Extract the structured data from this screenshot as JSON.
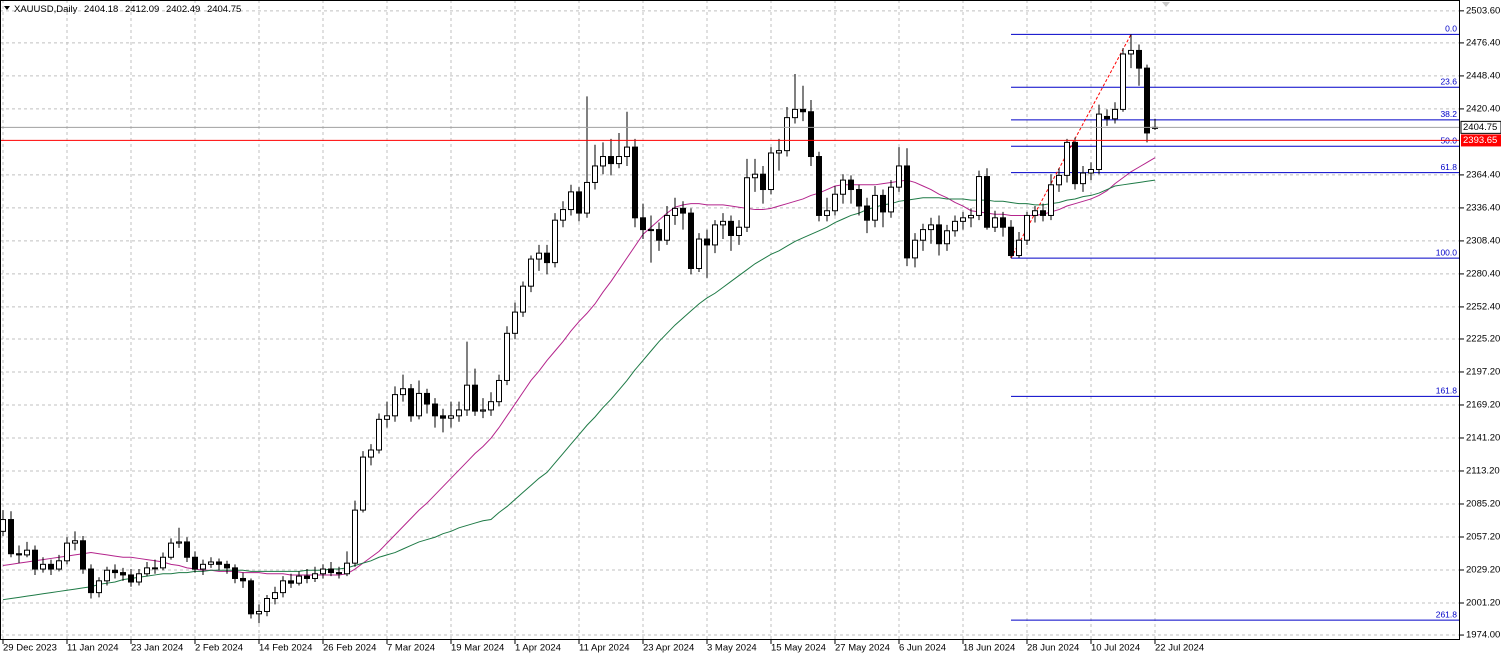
{
  "chart_data": {
    "type": "candlestick",
    "symbol": "XAUUSD,Daily",
    "categories": [
      "29 Dec 2023",
      null,
      null,
      null,
      null,
      null,
      null,
      null,
      "11 Jan 2024",
      null,
      null,
      null,
      null,
      null,
      null,
      null,
      "23 Jan 2024",
      null,
      null,
      null,
      null,
      null,
      null,
      null,
      "2 Feb 2024",
      null,
      null,
      null,
      null,
      null,
      null,
      null,
      "14 Feb 2024",
      null,
      null,
      null,
      null,
      null,
      null,
      null,
      "26 Feb 2024",
      null,
      null,
      null,
      null,
      null,
      null,
      null,
      "7 Mar 2024",
      null,
      null,
      null,
      null,
      null,
      null,
      null,
      "19 Mar 2024",
      null,
      null,
      null,
      null,
      null,
      null,
      null,
      "1 Apr 2024",
      null,
      null,
      null,
      null,
      null,
      null,
      null,
      "11 Apr 2024",
      null,
      null,
      null,
      null,
      null,
      null,
      null,
      "23 Apr 2024",
      null,
      null,
      null,
      null,
      null,
      null,
      null,
      "3 May 2024",
      null,
      null,
      null,
      null,
      null,
      null,
      null,
      "15 May 2024",
      null,
      null,
      null,
      null,
      null,
      null,
      null,
      "27 May 2024",
      null,
      null,
      null,
      null,
      null,
      null,
      null,
      "6 Jun 2024",
      null,
      null,
      null,
      null,
      null,
      null,
      null,
      "18 Jun 2024",
      null,
      null,
      null,
      null,
      null,
      null,
      null,
      "28 Jun 2024",
      null,
      null,
      null,
      null,
      null,
      null,
      null,
      "10 Jul 2024",
      null,
      null,
      null,
      null,
      null,
      null,
      null,
      "22 Jul 2024"
    ],
    "candles": [
      [
        2062,
        2080,
        2058,
        2072
      ],
      [
        2072,
        2079,
        2040,
        2043
      ],
      [
        2043,
        2050,
        2035,
        2042
      ],
      [
        2042,
        2053,
        2040,
        2046
      ],
      [
        2046,
        2050,
        2025,
        2030
      ],
      [
        2030,
        2040,
        2027,
        2034
      ],
      [
        2034,
        2038,
        2025,
        2030
      ],
      [
        2030,
        2042,
        2028,
        2037
      ],
      [
        2037,
        2057,
        2034,
        2052
      ],
      [
        2052,
        2062,
        2046,
        2054
      ],
      [
        2054,
        2058,
        2026,
        2030
      ],
      [
        2030,
        2034,
        2005,
        2010
      ],
      [
        2010,
        2023,
        2006,
        2020
      ],
      [
        2020,
        2032,
        2016,
        2029
      ],
      [
        2029,
        2034,
        2022,
        2027
      ],
      [
        2027,
        2031,
        2020,
        2025
      ],
      [
        2025,
        2030,
        2015,
        2019
      ],
      [
        2019,
        2030,
        2016,
        2026
      ],
      [
        2026,
        2036,
        2024,
        2031
      ],
      [
        2031,
        2038,
        2026,
        2031
      ],
      [
        2031,
        2044,
        2029,
        2040
      ],
      [
        2040,
        2056,
        2038,
        2052
      ],
      [
        2052,
        2065,
        2048,
        2053
      ],
      [
        2053,
        2057,
        2036,
        2040
      ],
      [
        2040,
        2045,
        2027,
        2030
      ],
      [
        2030,
        2038,
        2025,
        2034
      ],
      [
        2034,
        2040,
        2031,
        2036
      ],
      [
        2036,
        2039,
        2029,
        2034
      ],
      [
        2034,
        2037,
        2026,
        2031
      ],
      [
        2031,
        2034,
        2018,
        2022
      ],
      [
        2022,
        2027,
        2014,
        2020
      ],
      [
        2020,
        2022,
        1988,
        1992
      ],
      [
        1992,
        2000,
        1984,
        1994
      ],
      [
        1994,
        2008,
        1990,
        2005
      ],
      [
        2005,
        2015,
        2000,
        2010
      ],
      [
        2010,
        2024,
        2006,
        2020
      ],
      [
        2020,
        2026,
        2014,
        2018
      ],
      [
        2018,
        2028,
        2016,
        2024
      ],
      [
        2024,
        2030,
        2018,
        2022
      ],
      [
        2022,
        2032,
        2019,
        2026
      ],
      [
        2026,
        2034,
        2022,
        2030
      ],
      [
        2030,
        2036,
        2024,
        2027
      ],
      [
        2027,
        2032,
        2022,
        2026
      ],
      [
        2026,
        2045,
        2024,
        2035
      ],
      [
        2035,
        2088,
        2032,
        2080
      ],
      [
        2080,
        2130,
        2078,
        2125
      ],
      [
        2125,
        2136,
        2118,
        2131
      ],
      [
        2131,
        2162,
        2128,
        2157
      ],
      [
        2157,
        2172,
        2150,
        2160
      ],
      [
        2160,
        2185,
        2155,
        2178
      ],
      [
        2178,
        2195,
        2172,
        2183
      ],
      [
        2183,
        2187,
        2155,
        2160
      ],
      [
        2160,
        2190,
        2157,
        2179
      ],
      [
        2179,
        2183,
        2162,
        2170
      ],
      [
        2170,
        2175,
        2150,
        2160
      ],
      [
        2160,
        2166,
        2146,
        2158
      ],
      [
        2158,
        2172,
        2150,
        2160
      ],
      [
        2160,
        2172,
        2155,
        2165
      ],
      [
        2165,
        2223,
        2160,
        2186
      ],
      [
        2186,
        2200,
        2160,
        2164
      ],
      [
        2164,
        2175,
        2158,
        2165
      ],
      [
        2165,
        2180,
        2160,
        2172
      ],
      [
        2172,
        2195,
        2168,
        2190
      ],
      [
        2190,
        2236,
        2186,
        2230
      ],
      [
        2230,
        2256,
        2225,
        2248
      ],
      [
        2248,
        2274,
        2244,
        2270
      ],
      [
        2270,
        2296,
        2265,
        2293
      ],
      [
        2293,
        2305,
        2283,
        2298
      ],
      [
        2298,
        2305,
        2280,
        2290
      ],
      [
        2290,
        2332,
        2286,
        2326
      ],
      [
        2326,
        2342,
        2320,
        2335
      ],
      [
        2335,
        2356,
        2330,
        2350
      ],
      [
        2350,
        2354,
        2325,
        2332
      ],
      [
        2332,
        2431,
        2328,
        2358
      ],
      [
        2358,
        2390,
        2352,
        2372
      ],
      [
        2372,
        2392,
        2365,
        2380
      ],
      [
        2380,
        2395,
        2364,
        2374
      ],
      [
        2374,
        2400,
        2370,
        2380
      ],
      [
        2380,
        2418,
        2372,
        2388
      ],
      [
        2388,
        2395,
        2320,
        2328
      ],
      [
        2328,
        2340,
        2310,
        2318
      ],
      [
        2318,
        2330,
        2290,
        2318
      ],
      [
        2318,
        2324,
        2300,
        2309
      ],
      [
        2309,
        2338,
        2305,
        2330
      ],
      [
        2330,
        2345,
        2322,
        2336
      ],
      [
        2336,
        2342,
        2318,
        2332
      ],
      [
        2332,
        2336,
        2280,
        2285
      ],
      [
        2285,
        2315,
        2282,
        2310
      ],
      [
        2310,
        2318,
        2277,
        2305
      ],
      [
        2305,
        2326,
        2298,
        2322
      ],
      [
        2322,
        2332,
        2310,
        2325
      ],
      [
        2325,
        2330,
        2300,
        2313
      ],
      [
        2313,
        2326,
        2305,
        2320
      ],
      [
        2320,
        2378,
        2316,
        2362
      ],
      [
        2362,
        2378,
        2350,
        2365
      ],
      [
        2365,
        2372,
        2340,
        2352
      ],
      [
        2352,
        2388,
        2348,
        2383
      ],
      [
        2383,
        2395,
        2368,
        2385
      ],
      [
        2385,
        2422,
        2380,
        2413
      ],
      [
        2413,
        2450,
        2408,
        2420
      ],
      [
        2420,
        2440,
        2410,
        2418
      ],
      [
        2418,
        2428,
        2372,
        2380
      ],
      [
        2380,
        2384,
        2325,
        2330
      ],
      [
        2330,
        2345,
        2325,
        2334
      ],
      [
        2334,
        2355,
        2330,
        2348
      ],
      [
        2348,
        2365,
        2340,
        2360
      ],
      [
        2360,
        2364,
        2340,
        2352
      ],
      [
        2352,
        2356,
        2330,
        2338
      ],
      [
        2338,
        2345,
        2315,
        2326
      ],
      [
        2326,
        2355,
        2320,
        2347
      ],
      [
        2347,
        2352,
        2320,
        2333
      ],
      [
        2333,
        2360,
        2328,
        2354
      ],
      [
        2354,
        2388,
        2350,
        2372
      ],
      [
        2372,
        2387,
        2287,
        2294
      ],
      [
        2294,
        2315,
        2286,
        2309
      ],
      [
        2309,
        2323,
        2300,
        2318
      ],
      [
        2318,
        2328,
        2306,
        2322
      ],
      [
        2322,
        2330,
        2296,
        2306
      ],
      [
        2306,
        2322,
        2300,
        2317
      ],
      [
        2317,
        2330,
        2312,
        2325
      ],
      [
        2325,
        2333,
        2318,
        2328
      ],
      [
        2328,
        2336,
        2320,
        2330
      ],
      [
        2330,
        2368,
        2326,
        2363
      ],
      [
        2363,
        2370,
        2318,
        2320
      ],
      [
        2320,
        2334,
        2316,
        2328
      ],
      [
        2328,
        2333,
        2312,
        2320
      ],
      [
        2320,
        2326,
        2293.8,
        2296
      ],
      [
        2296,
        2316,
        2294,
        2309
      ],
      [
        2309,
        2333,
        2305,
        2330
      ],
      [
        2330,
        2338,
        2324,
        2334
      ],
      [
        2334,
        2340,
        2325,
        2330
      ],
      [
        2330,
        2365,
        2326,
        2356
      ],
      [
        2356,
        2370,
        2350,
        2364
      ],
      [
        2364,
        2395,
        2358,
        2392
      ],
      [
        2392,
        2396,
        2352,
        2357
      ],
      [
        2357,
        2372,
        2350,
        2366
      ],
      [
        2366,
        2375,
        2360,
        2369
      ],
      [
        2369,
        2424,
        2365,
        2416
      ],
      [
        2414,
        2420,
        2406,
        2412
      ],
      [
        2412,
        2426,
        2408,
        2420
      ],
      [
        2420,
        2472,
        2418,
        2467
      ],
      [
        2467,
        2483.6,
        2455,
        2470
      ],
      [
        2470,
        2475,
        2440,
        2455
      ],
      [
        2455,
        2458,
        2392,
        2400
      ],
      [
        2404.18,
        2412.09,
        2402.49,
        2404.75
      ]
    ],
    "up_color": "#ffffff",
    "down_color": "#000000",
    "moving_averages": [
      {
        "color": "#b4248c",
        "values": [
          2033,
          2034,
          2035,
          2036,
          2037,
          2038,
          2039,
          2040,
          2041,
          2042,
          2043,
          2044,
          2043,
          2042,
          2041,
          2040,
          2040,
          2039,
          2038,
          2037,
          2036,
          2034,
          2033,
          2031,
          2030,
          2029,
          2029,
          2028,
          2028,
          2028,
          2027,
          2027,
          2027,
          2026,
          2026,
          2026,
          2025,
          2025,
          2025,
          2025,
          2025,
          2025,
          2025,
          2026,
          2030,
          2035,
          2040,
          2045,
          2052,
          2059,
          2066,
          2073,
          2080,
          2086,
          2093,
          2100,
          2107,
          2114,
          2121,
          2128,
          2134,
          2141,
          2150,
          2160,
          2170,
          2180,
          2190,
          2198,
          2207,
          2215,
          2223,
          2232,
          2240,
          2247,
          2255,
          2265,
          2274,
          2284,
          2294,
          2304,
          2314,
          2320,
          2326,
          2332,
          2337,
          2339,
          2340,
          2340,
          2339,
          2339,
          2339,
          2338,
          2337,
          2336,
          2335,
          2335,
          2336,
          2338,
          2340,
          2342,
          2344,
          2347,
          2349,
          2352,
          2355,
          2356,
          2356,
          2356,
          2356,
          2356,
          2357,
          2358,
          2359,
          2360,
          2358,
          2355,
          2352,
          2348,
          2345,
          2341,
          2338,
          2334,
          2333,
          2332,
          2331,
          2331,
          2330,
          2330,
          2330,
          2330,
          2331,
          2333,
          2335,
          2338,
          2340,
          2342,
          2344,
          2347,
          2351,
          2357,
          2362,
          2367,
          2371,
          2375,
          2379
        ]
      },
      {
        "color": "#1e7a46",
        "values": [
          2004,
          2005,
          2006,
          2007,
          2008,
          2009,
          2010,
          2011,
          2012,
          2013,
          2014,
          2015,
          2017,
          2018,
          2019,
          2021,
          2022,
          2023,
          2024,
          2025,
          2026,
          2026,
          2027,
          2027,
          2028,
          2028,
          2029,
          2029,
          2029,
          2029,
          2029,
          2028,
          2028,
          2028,
          2028,
          2028,
          2028,
          2028,
          2029,
          2029,
          2029,
          2030,
          2030,
          2031,
          2033,
          2035,
          2037,
          2040,
          2042,
          2044,
          2047,
          2050,
          2053,
          2055,
          2057,
          2060,
          2062,
          2065,
          2067,
          2069,
          2071,
          2072,
          2078,
          2083,
          2089,
          2095,
          2101,
          2107,
          2112,
          2120,
          2128,
          2136,
          2144,
          2152,
          2159,
          2167,
          2174,
          2182,
          2190,
          2199,
          2207,
          2215,
          2223,
          2230,
          2237,
          2243,
          2249,
          2255,
          2260,
          2264,
          2269,
          2274,
          2279,
          2284,
          2289,
          2293,
          2297,
          2300,
          2304,
          2308,
          2311,
          2314,
          2317,
          2320,
          2324,
          2327,
          2330,
          2332,
          2335,
          2337,
          2339,
          2340,
          2342,
          2343,
          2344,
          2345,
          2345,
          2345,
          2344,
          2344,
          2344,
          2343,
          2343,
          2343,
          2342,
          2342,
          2341,
          2340,
          2340,
          2339,
          2339,
          2340,
          2341,
          2343,
          2344,
          2346,
          2347,
          2349,
          2352,
          2355,
          2356,
          2357,
          2358,
          2359,
          2360
        ]
      }
    ],
    "fibonacci": {
      "color": "#0000c8",
      "line_color": "#ff0000",
      "levels": [
        {
          "label": "0.0",
          "price": 2483.6
        },
        {
          "label": "23.6",
          "price": 2438.8
        },
        {
          "label": "38.2",
          "price": 2411.1
        },
        {
          "label": "50.0",
          "price": 2388.7
        },
        {
          "label": "61.8",
          "price": 2366.3
        },
        {
          "label": "100.0",
          "price": 2293.8
        },
        {
          "label": "161.8",
          "price": 2176.5
        },
        {
          "label": "261.8",
          "price": 1986.7
        }
      ]
    },
    "price_line": {
      "value": 2393.65,
      "color": "#ff0000"
    },
    "ylim": [
      1969.8,
      2512.8
    ],
    "yticks": [
      {
        "value": 2503.6,
        "label": "2503.60"
      },
      {
        "value": 2476.4,
        "label": "2476.40"
      },
      {
        "value": 2448.4,
        "label": "2448.40"
      },
      {
        "value": 2420.4,
        "label": "2420.40"
      },
      {
        "value": 2364.4,
        "label": "2364.40"
      },
      {
        "value": 2336.4,
        "label": "2336.40"
      },
      {
        "value": 2308.4,
        "label": "2308.40"
      },
      {
        "value": 2280.4,
        "label": "2280.40"
      },
      {
        "value": 2252.4,
        "label": "2252.40"
      },
      {
        "value": 2225.2,
        "label": "2225.20"
      },
      {
        "value": 2197.2,
        "label": "2197.20"
      },
      {
        "value": 2169.2,
        "label": "2169.20"
      },
      {
        "value": 2141.2,
        "label": "2141.20"
      },
      {
        "value": 2113.2,
        "label": "2113.20"
      },
      {
        "value": 2085.2,
        "label": "2085.20"
      },
      {
        "value": 2057.2,
        "label": "2057.20"
      },
      {
        "value": 2029.2,
        "label": "2029.20"
      },
      {
        "value": 2001.2,
        "label": "2001.20"
      },
      {
        "value": 1974,
        "label": "1974.00"
      }
    ],
    "grid": true
  }
}
